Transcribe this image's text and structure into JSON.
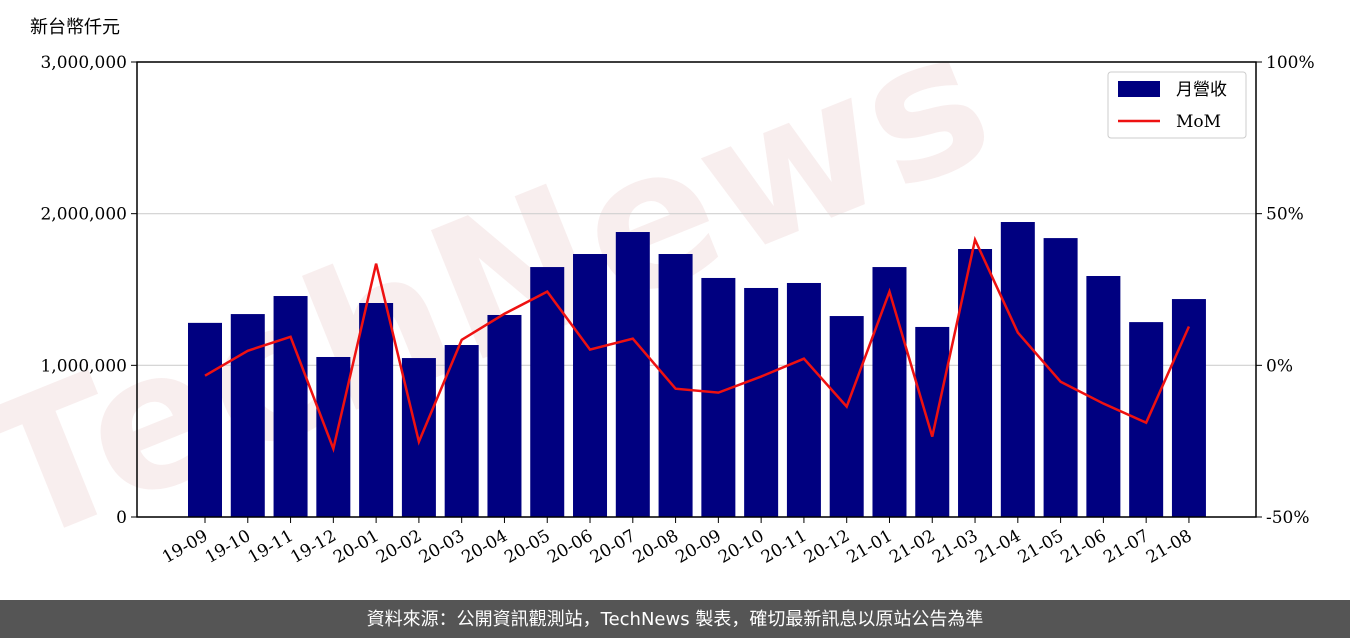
{
  "chart_data": {
    "type": "bar",
    "unit_label": "新台幣仟元",
    "watermark": "TechNews",
    "footer": "資料來源：公開資訊觀測站，TechNews 製表，確切最新訊息以原站公告為準",
    "categories": [
      "19-09",
      "19-10",
      "19-11",
      "19-12",
      "20-01",
      "20-02",
      "20-03",
      "20-04",
      "20-05",
      "20-06",
      "20-07",
      "20-08",
      "20-09",
      "20-10",
      "20-11",
      "20-12",
      "21-01",
      "21-02",
      "21-03",
      "21-04",
      "21-05",
      "21-06",
      "21-07",
      "21-08"
    ],
    "series": [
      {
        "name": "月營收",
        "type": "bar",
        "color": "#000080",
        "values": [
          1280000,
          1338000,
          1457000,
          1055000,
          1411000,
          1048000,
          1134000,
          1332000,
          1648000,
          1734000,
          1879000,
          1734000,
          1576000,
          1510000,
          1543000,
          1325000,
          1648000,
          1253000,
          1767000,
          1945000,
          1839000,
          1589000,
          1285000,
          1437000
        ]
      },
      {
        "name": "MoM",
        "type": "line",
        "axis": "y2",
        "color": "#ee1111",
        "values": [
          -3.4,
          4.8,
          9.4,
          -27.5,
          33.5,
          -25.2,
          8.4,
          17.0,
          24.3,
          5.2,
          8.8,
          -7.7,
          -9.0,
          -3.7,
          2.2,
          -13.6,
          24.3,
          -23.5,
          41.4,
          10.8,
          -5.4,
          -12.6,
          -18.9,
          12.8
        ]
      }
    ],
    "ylim": [
      0,
      3000000
    ],
    "yticks": [
      0,
      {
        "value": 1000000,
        "label": "1,000,000"
      },
      {
        "value": 2000000,
        "label": "2,000,000"
      },
      {
        "value": 3000000,
        "label": "3,000,000"
      }
    ],
    "y2lim": [
      -50,
      100
    ],
    "y2ticks": [
      {
        "value": -50,
        "label": "-50%"
      },
      {
        "value": 0,
        "label": "0%"
      },
      {
        "value": 50,
        "label": "50%"
      },
      {
        "value": 100,
        "label": "100%"
      }
    ],
    "grid": true,
    "legend": "upper right"
  }
}
